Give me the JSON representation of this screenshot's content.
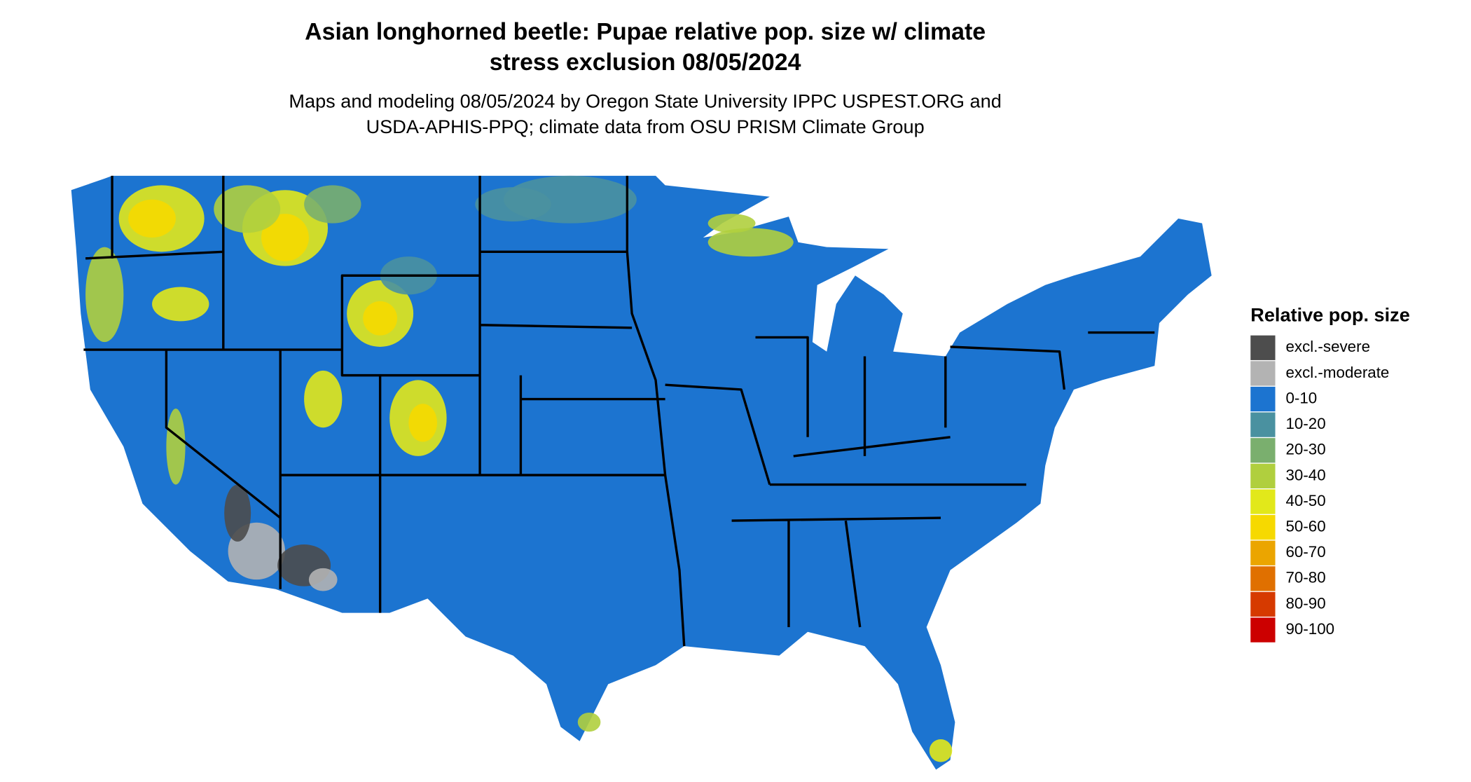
{
  "title": [
    "Asian longhorned beetle: Pupae relative pop. size w/ climate",
    "stress exclusion 08/05/2024"
  ],
  "subtitle": [
    "Maps and modeling 08/05/2024 by Oregon State University IPPC USPEST.ORG and",
    "USDA-APHIS-PPQ; climate data from OSU PRISM Climate Group"
  ],
  "legend": {
    "title": "Relative pop. size",
    "items": [
      {
        "label": "excl.-severe",
        "color": "#4d4d4d"
      },
      {
        "label": "excl.-moderate",
        "color": "#b3b3b3"
      },
      {
        "label": "0-10",
        "color": "#1c74d0"
      },
      {
        "label": "10-20",
        "color": "#4a91a0"
      },
      {
        "label": "20-30",
        "color": "#7aaf6e"
      },
      {
        "label": "30-40",
        "color": "#b0cf3e"
      },
      {
        "label": "40-50",
        "color": "#e2e81a"
      },
      {
        "label": "50-60",
        "color": "#f6d900"
      },
      {
        "label": "60-70",
        "color": "#eba500"
      },
      {
        "label": "70-80",
        "color": "#e07000"
      },
      {
        "label": "80-90",
        "color": "#d63a00"
      },
      {
        "label": "90-100",
        "color": "#cc0000"
      }
    ]
  }
}
